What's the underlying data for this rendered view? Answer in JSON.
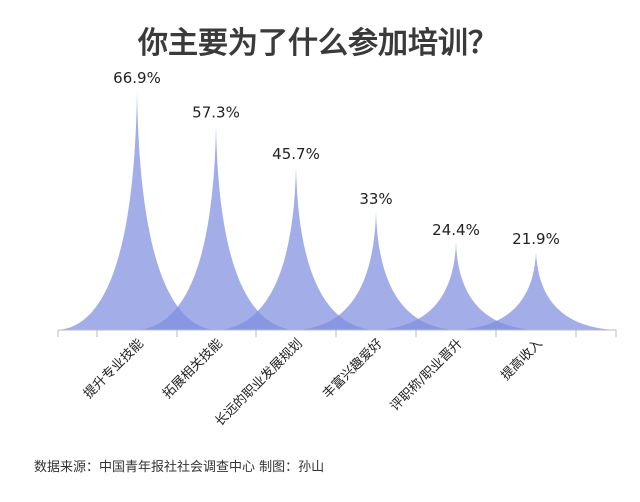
{
  "chart_data": {
    "type": "area",
    "title": "你主要为了什么参加培训？",
    "categories": [
      "提升专业技能",
      "拓展相关技能",
      "长远的职业发展规划",
      "丰富兴趣爱好",
      "评职称/职业晋升",
      "提高收入"
    ],
    "values": [
      66.9,
      57.3,
      45.7,
      33,
      24.4,
      21.9
    ],
    "value_labels": [
      "66.9%",
      "57.3%",
      "45.7%",
      "33%",
      "24.4%",
      "21.9%"
    ],
    "unit": "%",
    "ylim": [
      0,
      70
    ],
    "grid": false,
    "legend": "none",
    "source": "数据来源：中国青年报社社会调查中心  制图：孙山",
    "fill_color": "#7f8fe0",
    "fill_opacity": 0.72,
    "axis_color": "#bbbbbb"
  }
}
